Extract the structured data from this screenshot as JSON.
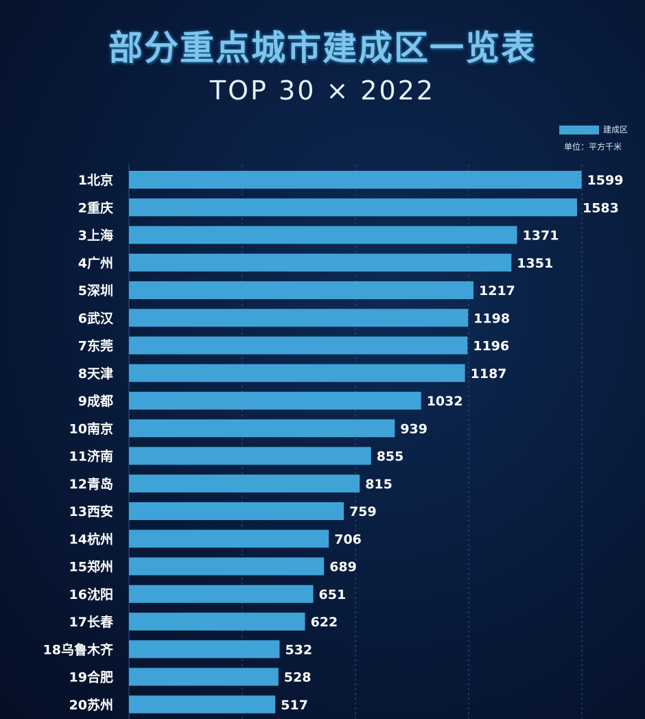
{
  "chart_data": {
    "type": "bar",
    "orientation": "horizontal",
    "title": "部分重点城市建成区一览表",
    "subtitle": "TOP 30 × 2022",
    "legend": {
      "label": "建成区",
      "placement": "top-right"
    },
    "unit_note": "单位：平方千米",
    "categories": [
      "1北京",
      "2重庆",
      "3上海",
      "4广州",
      "5深圳",
      "6武汉",
      "7东莞",
      "8天津",
      "9成都",
      "10南京",
      "11济南",
      "12青岛",
      "13西安",
      "14杭州",
      "15郑州",
      "16沈阳",
      "17长春",
      "18乌鲁木齐",
      "19合肥",
      "20苏州"
    ],
    "series": [
      {
        "name": "建成区",
        "values": [
          1599,
          1583,
          1371,
          1351,
          1217,
          1198,
          1196,
          1187,
          1032,
          939,
          855,
          815,
          759,
          706,
          689,
          651,
          622,
          532,
          528,
          517
        ]
      }
    ],
    "xlim": [
      0,
      1600
    ],
    "grid": true,
    "data_labels": true,
    "colors": {
      "bar": "#3fa3d8",
      "background": "#081a3a",
      "grid": "#2a5a8a"
    }
  }
}
